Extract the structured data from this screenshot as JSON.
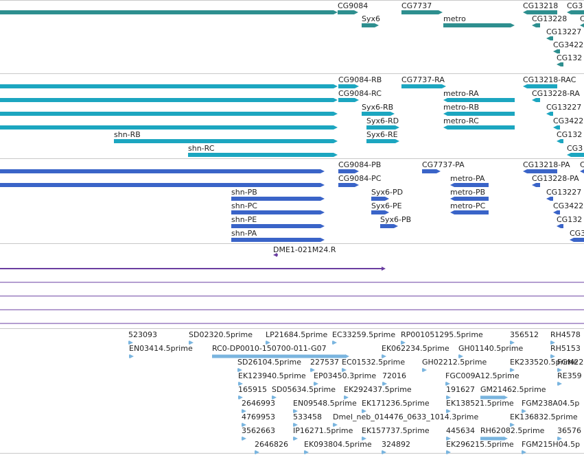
{
  "colors": {
    "gene": "#2e8f8f",
    "mrna": "#1ca6c0",
    "cds": "#3a64c8",
    "clone": "#6a3da0",
    "est": "#7ab5df",
    "separator": "#c8c8c8",
    "text": "#222222"
  },
  "tracks": [
    {
      "name": "genes",
      "color_key": "gene",
      "features": [
        {
          "label": "",
          "start": -10,
          "end": 492,
          "strand": "+",
          "row": 0
        },
        {
          "label": "CG9084",
          "start": 492,
          "end": 522,
          "strand": "+",
          "row": 0
        },
        {
          "label": "CG7737",
          "start": 585,
          "end": 645,
          "strand": "+",
          "row": 0
        },
        {
          "label": "CG13218",
          "start": 762,
          "end": 812,
          "strand": "-",
          "row": 0
        },
        {
          "label": "CG3",
          "start": 826,
          "end": 860,
          "strand": "-",
          "row": 0
        },
        {
          "label": "Syx6",
          "start": 527,
          "end": 552,
          "strand": "+",
          "row": 1
        },
        {
          "label": "metro",
          "start": 646,
          "end": 750,
          "strand": "+",
          "row": 1
        },
        {
          "label": "CG13228",
          "start": 775,
          "end": 787,
          "strand": "-",
          "row": 1
        },
        {
          "label": "C",
          "start": 845,
          "end": 860,
          "strand": "-",
          "row": 1
        },
        {
          "label": "CG13227",
          "start": 796,
          "end": 806,
          "strand": "-",
          "row": 2
        },
        {
          "label": "CG3422",
          "start": 806,
          "end": 816,
          "strand": "-",
          "row": 3
        },
        {
          "label": "CG132",
          "start": 811,
          "end": 821,
          "strand": "-",
          "row": 4
        }
      ]
    },
    {
      "name": "mrnas",
      "color_key": "mrna",
      "features": [
        {
          "label": "",
          "start": -10,
          "end": 492,
          "strand": "+",
          "row": 0
        },
        {
          "label": "CG9084-RB",
          "start": 493,
          "end": 523,
          "strand": "+",
          "row": 0
        },
        {
          "label": "CG7737-RA",
          "start": 585,
          "end": 650,
          "strand": "+",
          "row": 0
        },
        {
          "label": "CG13218-RAC",
          "start": 762,
          "end": 812,
          "strand": "-",
          "row": 0
        },
        {
          "label": "",
          "start": -10,
          "end": 492,
          "strand": "+",
          "row": 1
        },
        {
          "label": "CG9084-RC",
          "start": 493,
          "end": 523,
          "strand": "+",
          "row": 1
        },
        {
          "label": "metro-RA",
          "start": 646,
          "end": 750,
          "strand": "-",
          "row": 1
        },
        {
          "label": "CG13228-RA",
          "start": 775,
          "end": 787,
          "strand": "-",
          "row": 1
        },
        {
          "label": "",
          "start": -10,
          "end": 492,
          "strand": "+",
          "row": 2
        },
        {
          "label": "Syx6-RB",
          "start": 527,
          "end": 575,
          "strand": "+",
          "row": 2
        },
        {
          "label": "metro-RB",
          "start": 646,
          "end": 750,
          "strand": "-",
          "row": 2
        },
        {
          "label": "CG13227",
          "start": 796,
          "end": 806,
          "strand": "-",
          "row": 2
        },
        {
          "label": "",
          "start": -10,
          "end": 492,
          "strand": "+",
          "row": 3
        },
        {
          "label": "Syx6-RD",
          "start": 534,
          "end": 582,
          "strand": "+",
          "row": 3
        },
        {
          "label": "metro-RC",
          "start": 646,
          "end": 750,
          "strand": "-",
          "row": 3
        },
        {
          "label": "CG3422",
          "start": 806,
          "end": 816,
          "strand": "-",
          "row": 3
        },
        {
          "label": "shn-RB",
          "start": 166,
          "end": 492,
          "strand": "+",
          "row": 4
        },
        {
          "label": "Syx6-RE",
          "start": 534,
          "end": 582,
          "strand": "+",
          "row": 4
        },
        {
          "label": "CG132",
          "start": 811,
          "end": 821,
          "strand": "-",
          "row": 4
        },
        {
          "label": "shn-RC",
          "start": 274,
          "end": 492,
          "strand": "+",
          "row": 5
        },
        {
          "label": "CG3",
          "start": 826,
          "end": 860,
          "strand": "-",
          "row": 5
        }
      ]
    },
    {
      "name": "cds",
      "color_key": "cds",
      "features": [
        {
          "label": "",
          "start": -10,
          "end": 473,
          "strand": "+",
          "row": 0
        },
        {
          "label": "CG9084-PB",
          "start": 493,
          "end": 523,
          "strand": "+",
          "row": 0
        },
        {
          "label": "CG7737-PA",
          "start": 615,
          "end": 642,
          "strand": "+",
          "row": 0
        },
        {
          "label": "CG13218-PA",
          "start": 762,
          "end": 812,
          "strand": "-",
          "row": 0
        },
        {
          "label": "C",
          "start": 845,
          "end": 860,
          "strand": "-",
          "row": 0
        },
        {
          "label": "",
          "start": -10,
          "end": 473,
          "strand": "+",
          "row": 1
        },
        {
          "label": "CG9084-PC",
          "start": 493,
          "end": 523,
          "strand": "+",
          "row": 1
        },
        {
          "label": "metro-PA",
          "start": 656,
          "end": 712,
          "strand": "-",
          "row": 1
        },
        {
          "label": "CG13228-PA",
          "start": 775,
          "end": 787,
          "strand": "-",
          "row": 1
        },
        {
          "label": "shn-PB",
          "start": 337,
          "end": 473,
          "strand": "+",
          "row": 2
        },
        {
          "label": "Syx6-PD",
          "start": 541,
          "end": 567,
          "strand": "+",
          "row": 2
        },
        {
          "label": "metro-PB",
          "start": 656,
          "end": 712,
          "strand": "-",
          "row": 2
        },
        {
          "label": "CG13227",
          "start": 796,
          "end": 806,
          "strand": "-",
          "row": 2
        },
        {
          "label": "shn-PC",
          "start": 337,
          "end": 473,
          "strand": "+",
          "row": 3
        },
        {
          "label": "Syx6-PE",
          "start": 541,
          "end": 567,
          "strand": "+",
          "row": 3
        },
        {
          "label": "metro-PC",
          "start": 656,
          "end": 712,
          "strand": "-",
          "row": 3
        },
        {
          "label": "CG3422",
          "start": 806,
          "end": 816,
          "strand": "-",
          "row": 3
        },
        {
          "label": "shn-PE",
          "start": 337,
          "end": 473,
          "strand": "+",
          "row": 4
        },
        {
          "label": "Syx6-PB",
          "start": 554,
          "end": 580,
          "strand": "+",
          "row": 4
        },
        {
          "label": "CG132",
          "start": 811,
          "end": 821,
          "strand": "-",
          "row": 4
        },
        {
          "label": "shn-PA",
          "start": 337,
          "end": 473,
          "strand": "+",
          "row": 5
        },
        {
          "label": "CG3",
          "start": 830,
          "end": 860,
          "strand": "-",
          "row": 5
        }
      ]
    },
    {
      "name": "clones",
      "color_key": "clone",
      "features": [
        {
          "label": "DME1-021M24.R",
          "start": 398,
          "end": 405,
          "strand": "-",
          "row": 0
        },
        {
          "label": "",
          "start": -10,
          "end": 562,
          "strand": "+",
          "row": 1
        },
        {
          "label": "",
          "start": -10,
          "end": 860,
          "strand": "+",
          "row": 2
        },
        {
          "label": "",
          "start": -10,
          "end": 860,
          "strand": "+",
          "row": 3
        },
        {
          "label": "",
          "start": -10,
          "end": 860,
          "strand": "+",
          "row": 4
        },
        {
          "label": "",
          "start": -10,
          "end": 860,
          "strand": "+",
          "row": 5
        }
      ]
    },
    {
      "name": "ests",
      "color_key": "est",
      "features": [
        {
          "label": "523093",
          "start": 187,
          "end": 194,
          "strand": "+",
          "row": 0
        },
        {
          "label": "SD02320.5prime",
          "start": 275,
          "end": 282,
          "strand": "+",
          "row": 0
        },
        {
          "label": "LP21684.5prime",
          "start": 387,
          "end": 394,
          "strand": "+",
          "row": 0
        },
        {
          "label": "EC33259.5prime",
          "start": 484,
          "end": 491,
          "strand": "+",
          "row": 0
        },
        {
          "label": "RP001051295.5prime",
          "start": 584,
          "end": 591,
          "strand": "+",
          "row": 0
        },
        {
          "label": "356512",
          "start": 743,
          "end": 750,
          "strand": "+",
          "row": 0
        },
        {
          "label": "RH4578",
          "start": 802,
          "end": 809,
          "strand": "+",
          "row": 0
        },
        {
          "label": "EN03414.5prime",
          "start": 188,
          "end": 195,
          "strand": "+",
          "row": 1
        },
        {
          "label": "RC0-DP0010-150700-011-G07",
          "start": 309,
          "end": 509,
          "strand": "+",
          "row": 1
        },
        {
          "label": "EK062234.5prime",
          "start": 556,
          "end": 563,
          "strand": "+",
          "row": 1
        },
        {
          "label": "GH01140.5prime",
          "start": 668,
          "end": 675,
          "strand": "+",
          "row": 1
        },
        {
          "label": "RH5153",
          "start": 802,
          "end": 809,
          "strand": "+",
          "row": 1
        },
        {
          "label": "SD26104.5prime",
          "start": 346,
          "end": 353,
          "strand": "+",
          "row": 2
        },
        {
          "label": "227537",
          "start": 452,
          "end": 459,
          "strand": "+",
          "row": 2
        },
        {
          "label": "EC01532.5prime",
          "start": 498,
          "end": 505,
          "strand": "+",
          "row": 2
        },
        {
          "label": "GH02212.5prime",
          "start": 615,
          "end": 622,
          "strand": "+",
          "row": 2
        },
        {
          "label": "EK233520.5prime",
          "start": 743,
          "end": 750,
          "strand": "+",
          "row": 2
        },
        {
          "label": "FGM22",
          "start": 812,
          "end": 819,
          "strand": "+",
          "row": 2
        },
        {
          "label": "EK123940.5prime",
          "start": 347,
          "end": 354,
          "strand": "+",
          "row": 3
        },
        {
          "label": "EP03450.3prime",
          "start": 457,
          "end": 464,
          "strand": "+",
          "row": 3
        },
        {
          "label": "72016",
          "start": 557,
          "end": 564,
          "strand": "+",
          "row": 3
        },
        {
          "label": "FGC009A12.5prime",
          "start": 649,
          "end": 656,
          "strand": "+",
          "row": 3
        },
        {
          "label": "RE359",
          "start": 812,
          "end": 819,
          "strand": "+",
          "row": 3
        },
        {
          "label": "165915",
          "start": 347,
          "end": 354,
          "strand": "+",
          "row": 4
        },
        {
          "label": "SD05634.5prime",
          "start": 396,
          "end": 403,
          "strand": "+",
          "row": 4
        },
        {
          "label": "EK292437.5prime",
          "start": 501,
          "end": 508,
          "strand": "+",
          "row": 4
        },
        {
          "label": "191627",
          "start": 650,
          "end": 657,
          "strand": "+",
          "row": 4
        },
        {
          "label": "GM21462.5prime",
          "start": 700,
          "end": 740,
          "strand": "+",
          "row": 4
        },
        {
          "label": "2646993",
          "start": 352,
          "end": 359,
          "strand": "+",
          "row": 5
        },
        {
          "label": "EN09548.5prime",
          "start": 427,
          "end": 434,
          "strand": "+",
          "row": 5
        },
        {
          "label": "EK171236.5prime",
          "start": 527,
          "end": 534,
          "strand": "+",
          "row": 5
        },
        {
          "label": "EK138521.5prime",
          "start": 650,
          "end": 657,
          "strand": "+",
          "row": 5
        },
        {
          "label": "FGM238A04.5p",
          "start": 760,
          "end": 767,
          "strand": "+",
          "row": 5
        },
        {
          "label": "4769953",
          "start": 352,
          "end": 359,
          "strand": "+",
          "row": 6
        },
        {
          "label": "533458",
          "start": 427,
          "end": 434,
          "strand": "+",
          "row": 6
        },
        {
          "label": "Dmel_neb_014476_0633_1014.3prime",
          "start": 485,
          "end": 492,
          "strand": "+",
          "row": 6
        },
        {
          "label": "EK136832.5prime",
          "start": 743,
          "end": 750,
          "strand": "+",
          "row": 6
        },
        {
          "label": "3562663",
          "start": 352,
          "end": 359,
          "strand": "+",
          "row": 7
        },
        {
          "label": "IP16271.5prime",
          "start": 427,
          "end": 434,
          "strand": "+",
          "row": 7
        },
        {
          "label": "EK157737.5prime",
          "start": 527,
          "end": 534,
          "strand": "+",
          "row": 7
        },
        {
          "label": "445634",
          "start": 650,
          "end": 657,
          "strand": "+",
          "row": 7
        },
        {
          "label": "RH62082.5prime",
          "start": 700,
          "end": 740,
          "strand": "+",
          "row": 7
        },
        {
          "label": "36576",
          "start": 812,
          "end": 819,
          "strand": "+",
          "row": 7
        },
        {
          "label": "2646826",
          "start": 371,
          "end": 378,
          "strand": "+",
          "row": 8
        },
        {
          "label": "EK093804.5prime",
          "start": 443,
          "end": 450,
          "strand": "+",
          "row": 8
        },
        {
          "label": "324892",
          "start": 556,
          "end": 563,
          "strand": "+",
          "row": 8
        },
        {
          "label": "EK296215.5prime",
          "start": 650,
          "end": 657,
          "strand": "+",
          "row": 8
        },
        {
          "label": "FGM215H04.5p",
          "start": 760,
          "end": 767,
          "strand": "+",
          "row": 8
        }
      ]
    }
  ]
}
